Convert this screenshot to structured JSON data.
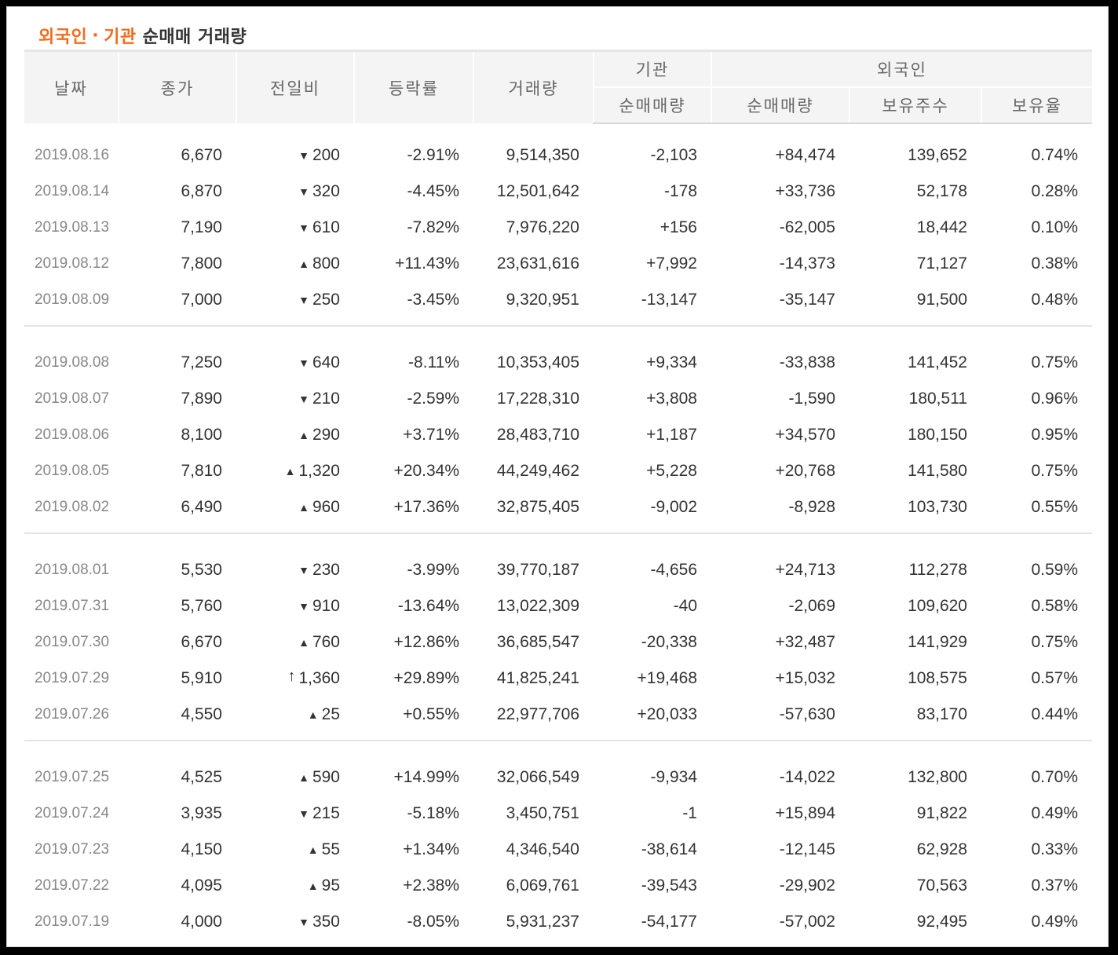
{
  "title": {
    "part1": "외국인",
    "sep": "·",
    "part2": "기관",
    "rest": "순매매 거래량"
  },
  "headers": {
    "date": "날짜",
    "close": "종가",
    "change": "전일비",
    "rate": "등락률",
    "volume": "거래량",
    "inst_group": "기관",
    "inst_net": "순매매량",
    "foreign_group": "외국인",
    "foreign_net": "순매매량",
    "foreign_hold": "보유주수",
    "foreign_ratio": "보유율"
  },
  "colors": {
    "up": "#d60000",
    "down": "#0a5cd7",
    "accent": "#f36b1c"
  },
  "groups": [
    [
      {
        "date": "2019.08.16",
        "close": "6,670",
        "dir": "down",
        "change": "200",
        "rate": "-2.91%",
        "volume": "9,514,350",
        "inst": "-2,103",
        "foreign": "+84,474",
        "hold": "139,652",
        "ratio": "0.74%"
      },
      {
        "date": "2019.08.14",
        "close": "6,870",
        "dir": "down",
        "change": "320",
        "rate": "-4.45%",
        "volume": "12,501,642",
        "inst": "-178",
        "foreign": "+33,736",
        "hold": "52,178",
        "ratio": "0.28%"
      },
      {
        "date": "2019.08.13",
        "close": "7,190",
        "dir": "down",
        "change": "610",
        "rate": "-7.82%",
        "volume": "7,976,220",
        "inst": "+156",
        "foreign": "-62,005",
        "hold": "18,442",
        "ratio": "0.10%"
      },
      {
        "date": "2019.08.12",
        "close": "7,800",
        "dir": "up",
        "change": "800",
        "rate": "+11.43%",
        "volume": "23,631,616",
        "inst": "+7,992",
        "foreign": "-14,373",
        "hold": "71,127",
        "ratio": "0.38%"
      },
      {
        "date": "2019.08.09",
        "close": "7,000",
        "dir": "down",
        "change": "250",
        "rate": "-3.45%",
        "volume": "9,320,951",
        "inst": "-13,147",
        "foreign": "-35,147",
        "hold": "91,500",
        "ratio": "0.48%"
      }
    ],
    [
      {
        "date": "2019.08.08",
        "close": "7,250",
        "dir": "down",
        "change": "640",
        "rate": "-8.11%",
        "volume": "10,353,405",
        "inst": "+9,334",
        "foreign": "-33,838",
        "hold": "141,452",
        "ratio": "0.75%"
      },
      {
        "date": "2019.08.07",
        "close": "7,890",
        "dir": "down",
        "change": "210",
        "rate": "-2.59%",
        "volume": "17,228,310",
        "inst": "+3,808",
        "foreign": "-1,590",
        "hold": "180,511",
        "ratio": "0.96%"
      },
      {
        "date": "2019.08.06",
        "close": "8,100",
        "dir": "up",
        "change": "290",
        "rate": "+3.71%",
        "volume": "28,483,710",
        "inst": "+1,187",
        "foreign": "+34,570",
        "hold": "180,150",
        "ratio": "0.95%"
      },
      {
        "date": "2019.08.05",
        "close": "7,810",
        "dir": "up",
        "change": "1,320",
        "rate": "+20.34%",
        "volume": "44,249,462",
        "inst": "+5,228",
        "foreign": "+20,768",
        "hold": "141,580",
        "ratio": "0.75%"
      },
      {
        "date": "2019.08.02",
        "close": "6,490",
        "dir": "up",
        "change": "960",
        "rate": "+17.36%",
        "volume": "32,875,405",
        "inst": "-9,002",
        "foreign": "-8,928",
        "hold": "103,730",
        "ratio": "0.55%"
      }
    ],
    [
      {
        "date": "2019.08.01",
        "close": "5,530",
        "dir": "down",
        "change": "230",
        "rate": "-3.99%",
        "volume": "39,770,187",
        "inst": "-4,656",
        "foreign": "+24,713",
        "hold": "112,278",
        "ratio": "0.59%"
      },
      {
        "date": "2019.07.31",
        "close": "5,760",
        "dir": "down",
        "change": "910",
        "rate": "-13.64%",
        "volume": "13,022,309",
        "inst": "-40",
        "foreign": "-2,069",
        "hold": "109,620",
        "ratio": "0.58%"
      },
      {
        "date": "2019.07.30",
        "close": "6,670",
        "dir": "up",
        "change": "760",
        "rate": "+12.86%",
        "volume": "36,685,547",
        "inst": "-20,338",
        "foreign": "+32,487",
        "hold": "141,929",
        "ratio": "0.75%"
      },
      {
        "date": "2019.07.29",
        "close": "5,910",
        "dir": "upper",
        "change": "1,360",
        "rate": "+29.89%",
        "volume": "41,825,241",
        "inst": "+19,468",
        "foreign": "+15,032",
        "hold": "108,575",
        "ratio": "0.57%"
      },
      {
        "date": "2019.07.26",
        "close": "4,550",
        "dir": "up",
        "change": "25",
        "rate": "+0.55%",
        "volume": "22,977,706",
        "inst": "+20,033",
        "foreign": "-57,630",
        "hold": "83,170",
        "ratio": "0.44%"
      }
    ],
    [
      {
        "date": "2019.07.25",
        "close": "4,525",
        "dir": "up",
        "change": "590",
        "rate": "+14.99%",
        "volume": "32,066,549",
        "inst": "-9,934",
        "foreign": "-14,022",
        "hold": "132,800",
        "ratio": "0.70%"
      },
      {
        "date": "2019.07.24",
        "close": "3,935",
        "dir": "down",
        "change": "215",
        "rate": "-5.18%",
        "volume": "3,450,751",
        "inst": "-1",
        "foreign": "+15,894",
        "hold": "91,822",
        "ratio": "0.49%"
      },
      {
        "date": "2019.07.23",
        "close": "4,150",
        "dir": "up",
        "change": "55",
        "rate": "+1.34%",
        "volume": "4,346,540",
        "inst": "-38,614",
        "foreign": "-12,145",
        "hold": "62,928",
        "ratio": "0.33%"
      },
      {
        "date": "2019.07.22",
        "close": "4,095",
        "dir": "up",
        "change": "95",
        "rate": "+2.38%",
        "volume": "6,069,761",
        "inst": "-39,543",
        "foreign": "-29,902",
        "hold": "70,563",
        "ratio": "0.37%"
      },
      {
        "date": "2019.07.19",
        "close": "4,000",
        "dir": "down",
        "change": "350",
        "rate": "-8.05%",
        "volume": "5,931,237",
        "inst": "-54,177",
        "foreign": "-57,002",
        "hold": "92,495",
        "ratio": "0.49%"
      }
    ]
  ]
}
